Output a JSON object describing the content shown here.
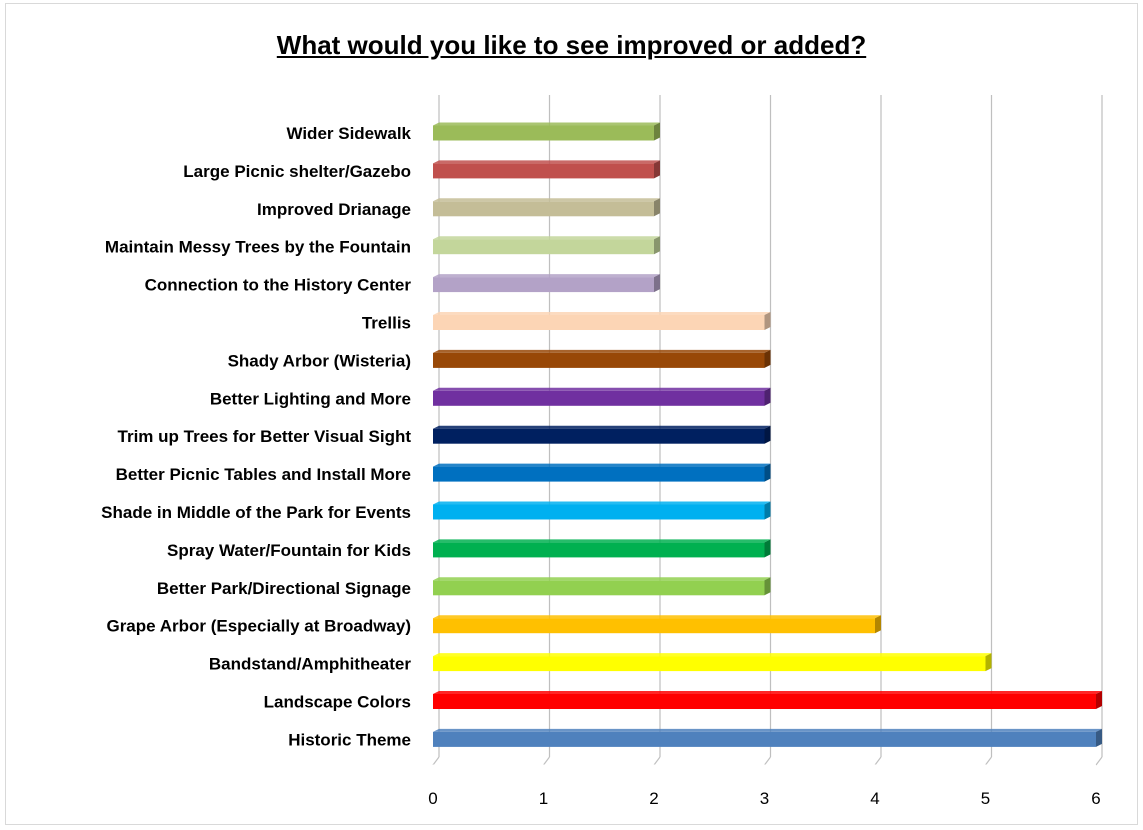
{
  "chart_data": {
    "type": "bar",
    "orientation": "horizontal",
    "title": "What would you like to see improved or added?",
    "xlabel": "",
    "ylabel": "",
    "xlim": [
      0,
      6
    ],
    "x_ticks": [
      "0",
      "1",
      "2",
      "3",
      "4",
      "5",
      "6"
    ],
    "grid": true,
    "legend": "none",
    "categories": [
      "Wider Sidewalk",
      "Large Picnic shelter/Gazebo",
      "Improved Drianage",
      "Maintain Messy Trees by the Fountain",
      "Connection to the History Center",
      "Trellis",
      "Shady Arbor (Wisteria)",
      "Better Lighting and More",
      "Trim up Trees for Better Visual Sight",
      "Better Picnic Tables and Install More",
      "Shade in Middle of the Park for Events",
      "Spray Water/Fountain for Kids",
      "Better Park/Directional Signage",
      "Grape Arbor (Especially at Broadway)",
      "Bandstand/Amphitheater",
      "Landscape Colors",
      "Historic Theme"
    ],
    "values": [
      2,
      2,
      2,
      2,
      2,
      3,
      3,
      3,
      3,
      3,
      3,
      3,
      3,
      4,
      5,
      6,
      6
    ],
    "colors": [
      "#9bbb59",
      "#c0504d",
      "#c4bd97",
      "#c3d69b",
      "#b3a2c7",
      "#fcd5b5",
      "#984807",
      "#7030a0",
      "#002060",
      "#0070c0",
      "#00b0f0",
      "#00b050",
      "#92d050",
      "#ffc000",
      "#ffff00",
      "#ff0000",
      "#4f81bd"
    ]
  }
}
